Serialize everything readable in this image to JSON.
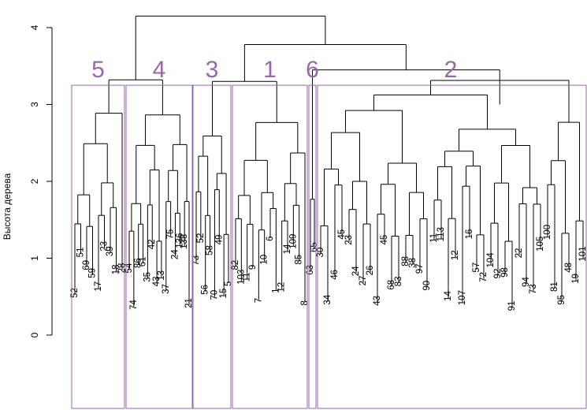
{
  "chart_data": {
    "type": "dendrogram",
    "ylabel": "Высота дерева",
    "ylim": [
      0,
      4
    ],
    "y_ticks": [
      0,
      1,
      2,
      3,
      4
    ],
    "box_color": "#9a66a8",
    "clusters": [
      {
        "label": "5",
        "leaves": [
          "52",
          "51",
          "69",
          "59",
          "17",
          "23",
          "39",
          "18",
          "28"
        ]
      },
      {
        "label": "4",
        "leaves": [
          "54",
          "74",
          "86",
          "61",
          "35",
          "42",
          "43",
          "13",
          "37",
          "75",
          "24",
          "136",
          "138",
          "21"
        ]
      },
      {
        "label": "3",
        "leaves": [
          "73",
          "52",
          "56",
          "58",
          "70",
          "49",
          "15",
          "5"
        ]
      },
      {
        "label": "1",
        "leaves": [
          "82",
          "103",
          "11",
          "9",
          "7",
          "10",
          "6",
          "1",
          "12",
          "14",
          "109",
          "85",
          "8"
        ]
      },
      {
        "label": "6",
        "leaves": [
          "63",
          "65"
        ]
      },
      {
        "label": "2",
        "leaves": [
          "30",
          "34",
          "46",
          "45",
          "23",
          "24",
          "27",
          "26",
          "43",
          "45",
          "68",
          "83",
          "88",
          "38",
          "97",
          "90",
          "11",
          "113",
          "14",
          "12",
          "107",
          "16",
          "57",
          "72",
          "104",
          "92",
          "98",
          "91",
          "22",
          "94",
          "73",
          "105",
          "100",
          "81",
          "95",
          "48",
          "19",
          "101"
        ]
      }
    ]
  }
}
